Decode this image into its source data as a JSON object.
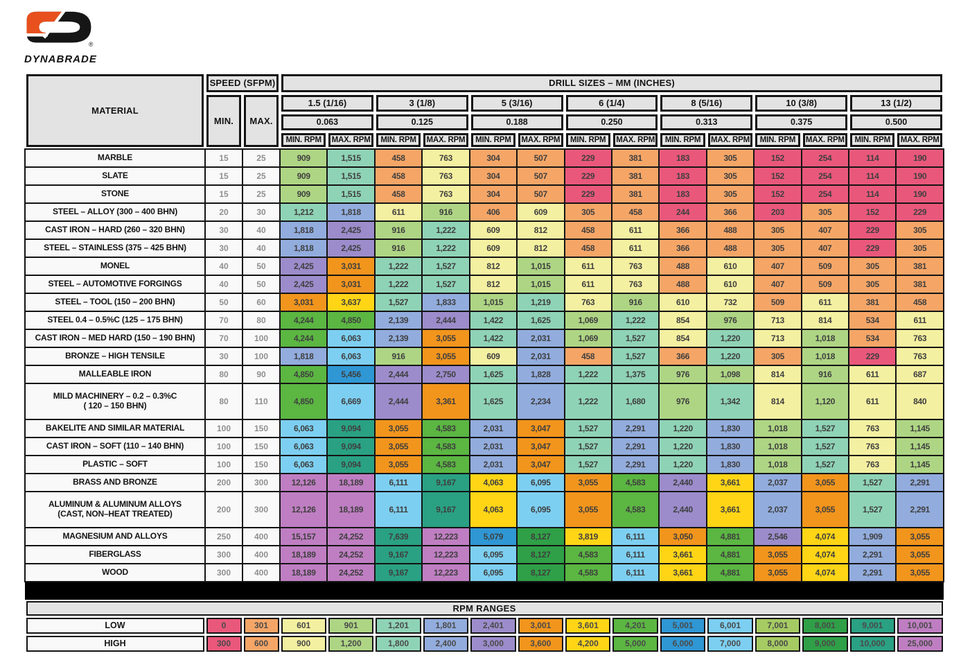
{
  "brand": {
    "name": "DYNABRADE",
    "registered_mark": "®",
    "logo_orange": "#E8501E",
    "logo_black": "#161616"
  },
  "table": {
    "material_header": "MATERIAL",
    "speed_header": "SPEED (SFPM)",
    "speed_min_label": "MIN.",
    "speed_max_label": "MAX.",
    "drill_sizes_header": "DRILL SIZES – MM (INCHES)",
    "min_rpm_label": "MIN. RPM",
    "max_rpm_label": "MAX. RPM",
    "drill_sizes": [
      {
        "mm": "1.5 (1/16)",
        "inches": "0.063"
      },
      {
        "mm": "3 (1/8)",
        "inches": "0.125"
      },
      {
        "mm": "5 (3/16)",
        "inches": "0.188"
      },
      {
        "mm": "6 (1/4)",
        "inches": "0.250"
      },
      {
        "mm": "8 (5/16)",
        "inches": "0.313"
      },
      {
        "mm": "10 (3/8)",
        "inches": "0.375"
      },
      {
        "mm": "13 (1/2)",
        "inches": "0.500"
      }
    ],
    "rows": [
      {
        "material": "MARBLE",
        "min": 15,
        "max": 25,
        "tall": false,
        "rpm": [
          909,
          1515,
          458,
          763,
          304,
          507,
          229,
          381,
          183,
          305,
          152,
          254,
          114,
          190
        ]
      },
      {
        "material": "SLATE",
        "min": 15,
        "max": 25,
        "tall": false,
        "rpm": [
          909,
          1515,
          458,
          763,
          304,
          507,
          229,
          381,
          183,
          305,
          152,
          254,
          114,
          190
        ]
      },
      {
        "material": "STONE",
        "min": 15,
        "max": 25,
        "tall": false,
        "rpm": [
          909,
          1515,
          458,
          763,
          304,
          507,
          229,
          381,
          183,
          305,
          152,
          254,
          114,
          190
        ]
      },
      {
        "material": "STEEL – ALLOY (300 – 400 BHN)",
        "min": 20,
        "max": 30,
        "tall": false,
        "rpm": [
          1212,
          1818,
          611,
          916,
          406,
          609,
          305,
          458,
          244,
          366,
          203,
          305,
          152,
          229
        ]
      },
      {
        "material": "CAST IRON – HARD (260 – 320 BHN)",
        "min": 30,
        "max": 40,
        "tall": false,
        "rpm": [
          1818,
          2425,
          916,
          1222,
          609,
          812,
          458,
          611,
          366,
          488,
          305,
          407,
          229,
          305
        ]
      },
      {
        "material": "STEEL – STAINLESS (375 – 425 BHN)",
        "min": 30,
        "max": 40,
        "tall": false,
        "rpm": [
          1818,
          2425,
          916,
          1222,
          609,
          812,
          458,
          611,
          366,
          488,
          305,
          407,
          229,
          305
        ]
      },
      {
        "material": "MONEL",
        "min": 40,
        "max": 50,
        "tall": false,
        "rpm": [
          2425,
          3031,
          1222,
          1527,
          812,
          1015,
          611,
          763,
          488,
          610,
          407,
          509,
          305,
          381
        ]
      },
      {
        "material": "STEEL – AUTOMOTIVE FORGINGS",
        "min": 40,
        "max": 50,
        "tall": false,
        "rpm": [
          2425,
          3031,
          1222,
          1527,
          812,
          1015,
          611,
          763,
          488,
          610,
          407,
          509,
          305,
          381
        ]
      },
      {
        "material": "STEEL – TOOL (150 – 200 BHN)",
        "min": 50,
        "max": 60,
        "tall": false,
        "rpm": [
          3031,
          3637,
          1527,
          1833,
          1015,
          1219,
          763,
          916,
          610,
          732,
          509,
          611,
          381,
          458
        ]
      },
      {
        "material": "STEEL 0.4 – 0.5%C (125 – 175 BHN)",
        "min": 70,
        "max": 80,
        "tall": false,
        "rpm": [
          4244,
          4850,
          2139,
          2444,
          1422,
          1625,
          1069,
          1222,
          854,
          976,
          713,
          814,
          534,
          611
        ]
      },
      {
        "material": "CAST IRON – MED HARD (150 – 190 BHN)",
        "min": 70,
        "max": 100,
        "tall": false,
        "rpm": [
          4244,
          6063,
          2139,
          3055,
          1422,
          2031,
          1069,
          1527,
          854,
          1220,
          713,
          1018,
          534,
          763
        ]
      },
      {
        "material": "BRONZE – HIGH TENSILE",
        "min": 30,
        "max": 100,
        "tall": false,
        "rpm": [
          1818,
          6063,
          916,
          3055,
          609,
          2031,
          458,
          1527,
          366,
          1220,
          305,
          1018,
          229,
          763
        ]
      },
      {
        "material": "MALLEABLE IRON",
        "min": 80,
        "max": 90,
        "tall": false,
        "rpm": [
          4850,
          5456,
          2444,
          2750,
          1625,
          1828,
          1222,
          1375,
          976,
          1098,
          814,
          916,
          611,
          687
        ]
      },
      {
        "material": "MILD MACHINERY – 0.2 – 0.3%C",
        "material_line2": "( 120 – 150 BHN)",
        "min": 80,
        "max": 110,
        "tall": true,
        "rpm": [
          4850,
          6669,
          2444,
          3361,
          1625,
          2234,
          1222,
          1680,
          976,
          1342,
          814,
          1120,
          611,
          840
        ]
      },
      {
        "material": "BAKELITE AND SIMILAR MATERIAL",
        "min": 100,
        "max": 150,
        "tall": false,
        "rpm": [
          6063,
          9094,
          3055,
          4583,
          2031,
          3047,
          1527,
          2291,
          1220,
          1830,
          1018,
          1527,
          763,
          1145
        ]
      },
      {
        "material": "CAST IRON – SOFT (110 – 140 BHN)",
        "min": 100,
        "max": 150,
        "tall": false,
        "rpm": [
          6063,
          9094,
          3055,
          4583,
          2031,
          3047,
          1527,
          2291,
          1220,
          1830,
          1018,
          1527,
          763,
          1145
        ]
      },
      {
        "material": "PLASTIC – SOFT",
        "min": 100,
        "max": 150,
        "tall": false,
        "rpm": [
          6063,
          9094,
          3055,
          4583,
          2031,
          3047,
          1527,
          2291,
          1220,
          1830,
          1018,
          1527,
          763,
          1145
        ]
      },
      {
        "material": "BRASS AND BRONZE",
        "min": 200,
        "max": 300,
        "tall": false,
        "rpm": [
          12126,
          18189,
          6111,
          9167,
          4063,
          6095,
          3055,
          4583,
          2440,
          3661,
          2037,
          3055,
          1527,
          2291
        ]
      },
      {
        "material": "ALUMINUM & ALUMINUM ALLOYS",
        "material_line2": "(CAST, NON–HEAT TREATED)",
        "min": 200,
        "max": 300,
        "tall": true,
        "rpm": [
          12126,
          18189,
          6111,
          9167,
          4063,
          6095,
          3055,
          4583,
          2440,
          3661,
          2037,
          3055,
          1527,
          2291
        ]
      },
      {
        "material": "MAGNESIUM AND ALLOYS",
        "min": 250,
        "max": 400,
        "tall": false,
        "rpm": [
          15157,
          24252,
          7639,
          12223,
          5079,
          8127,
          3819,
          6111,
          3050,
          4881,
          2546,
          4074,
          1909,
          3055
        ]
      },
      {
        "material": "FIBERGLASS",
        "min": 300,
        "max": 400,
        "tall": false,
        "rpm": [
          18189,
          24252,
          9167,
          12223,
          6095,
          8127,
          4583,
          6111,
          3661,
          4881,
          3055,
          4074,
          2291,
          3055
        ]
      },
      {
        "material": "WOOD",
        "min": 300,
        "max": 400,
        "tall": false,
        "rpm": [
          18189,
          24252,
          9167,
          12223,
          6095,
          8127,
          4583,
          6111,
          3661,
          4881,
          3055,
          4074,
          2291,
          3055
        ]
      }
    ]
  },
  "rpm_ranges": {
    "title": "RPM RANGES",
    "low_label": "LOW",
    "high_label": "HIGH",
    "bands": [
      {
        "low": "0",
        "high": "300",
        "color": "#E9587B"
      },
      {
        "low": "301",
        "high": "600",
        "color": "#F5A667"
      },
      {
        "low": "601",
        "high": "900",
        "color": "#F4F0A1"
      },
      {
        "low": "901",
        "high": "1,200",
        "color": "#AED584"
      },
      {
        "low": "1,201",
        "high": "1,800",
        "color": "#8FD3B6"
      },
      {
        "low": "1,801",
        "high": "2,400",
        "color": "#92ACDD"
      },
      {
        "low": "2,401",
        "high": "3,000",
        "color": "#9C8CCB"
      },
      {
        "low": "3,001",
        "high": "3,600",
        "color": "#F2951D"
      },
      {
        "low": "3,601",
        "high": "4,200",
        "color": "#FFD516"
      },
      {
        "low": "4,201",
        "high": "5,000",
        "color": "#5BB642"
      },
      {
        "low": "5,001",
        "high": "6,000",
        "color": "#2F97D4"
      },
      {
        "low": "6,001",
        "high": "7,000",
        "color": "#7DCFF1"
      },
      {
        "low": "7,001",
        "high": "8,000",
        "color": "#A5CB62"
      },
      {
        "low": "8,001",
        "high": "9,000",
        "color": "#2FA047"
      },
      {
        "low": "9,001",
        "high": "10,000",
        "color": "#2AA183"
      },
      {
        "low": "10,001",
        "high": "25,000",
        "color": "#BF7EC2"
      }
    ],
    "data_cell_color_overrides": {
      "7639": "#2AA183"
    }
  }
}
